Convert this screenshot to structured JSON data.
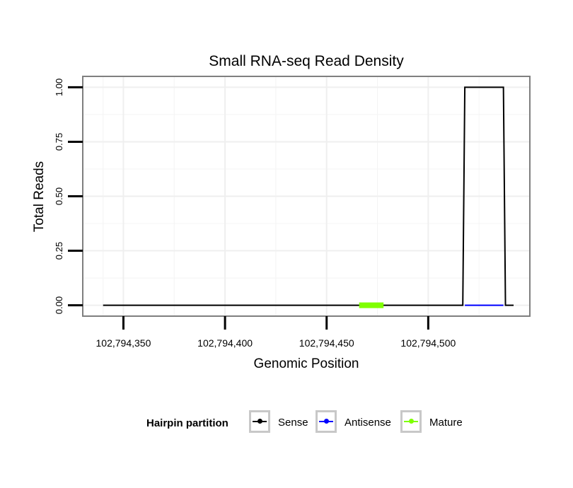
{
  "chart_data": {
    "type": "line",
    "title": "Small RNA-seq Read Density",
    "xlabel": "Genomic Position",
    "ylabel": "Total Reads",
    "xlim": [
      102794330,
      102794550
    ],
    "ylim": [
      -0.05,
      1.05
    ],
    "x_ticks": [
      102794350,
      102794400,
      102794450,
      102794500
    ],
    "x_tick_labels": [
      "102,794,350",
      "102,794,400",
      "102,794,450",
      "102,794,500"
    ],
    "y_ticks": [
      0,
      0.25,
      0.5,
      0.75,
      1.0
    ],
    "y_tick_labels": [
      "0.00",
      "0.25",
      "0.50",
      "0.75",
      "1.00"
    ],
    "grid": true,
    "series": [
      {
        "name": "Sense",
        "color": "#000000",
        "x": [
          102794340,
          102794517,
          102794518,
          102794537,
          102794538,
          102794542
        ],
        "y": [
          0,
          0,
          1,
          1,
          0,
          0
        ]
      },
      {
        "name": "Antisense",
        "color": "#0000ff",
        "x": [
          102794518,
          102794537
        ],
        "y": [
          0,
          0
        ]
      },
      {
        "name": "Mature",
        "color": "#7fff00",
        "x": [
          102794466,
          102794478
        ],
        "y": [
          0,
          0
        ]
      }
    ]
  },
  "legend": {
    "title": "Hairpin partition",
    "items": [
      {
        "label": "Sense",
        "color": "#000000"
      },
      {
        "label": "Antisense",
        "color": "#0000ff"
      },
      {
        "label": "Mature",
        "color": "#7fff00"
      }
    ]
  }
}
